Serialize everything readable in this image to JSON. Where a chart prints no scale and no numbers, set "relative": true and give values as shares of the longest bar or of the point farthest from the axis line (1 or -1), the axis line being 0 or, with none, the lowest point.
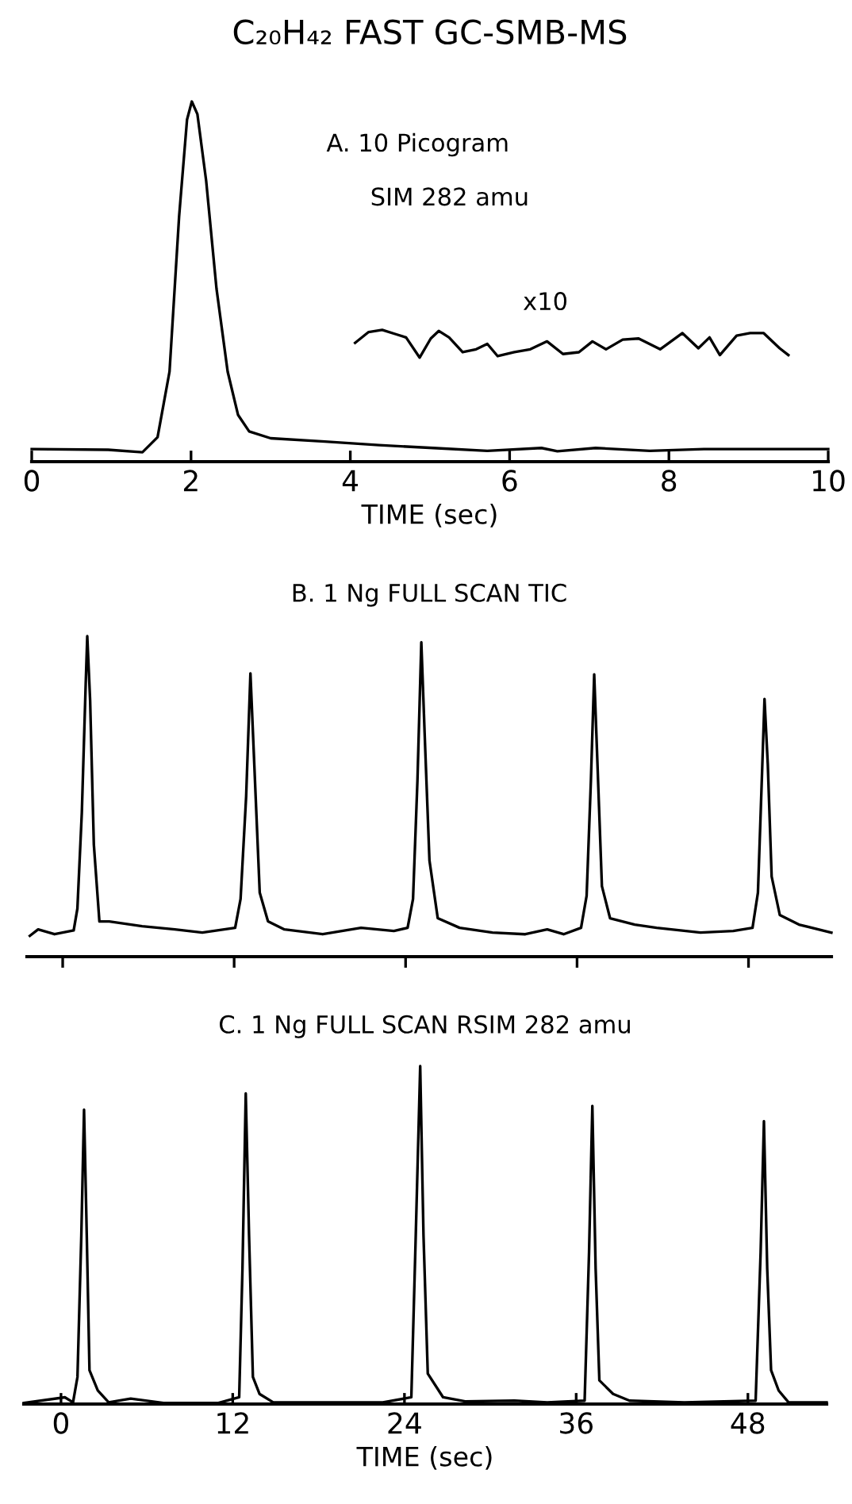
{
  "chart_data": [
    {
      "type": "line",
      "title": "C₂₀H₄₂ FAST GC-SMB-MS",
      "xlabel": "TIME (sec)",
      "relative": true,
      "xlim": [
        0,
        10
      ],
      "xticks": [
        0,
        2,
        4,
        6,
        8,
        10
      ],
      "annotations": [
        "A. 10 Picogram",
        "SIM 282 amu",
        "x10"
      ],
      "series": [
        {
          "color": "#000000",
          "x": [
            0,
            0.96,
            1.39,
            1.58,
            1.73,
            1.85,
            1.95,
            2.01,
            2.08,
            2.19,
            2.32,
            2.46,
            2.59,
            2.73,
            3.0,
            3.68,
            4.36,
            5.04,
            5.72,
            6.4,
            6.6,
            7.08,
            7.76,
            8.44,
            9.12,
            10
          ],
          "values": [
            0.035,
            0.033,
            0.026,
            0.068,
            0.25,
            0.68,
            0.95,
            1.0,
            0.965,
            0.78,
            0.48,
            0.25,
            0.13,
            0.084,
            0.065,
            0.056,
            0.046,
            0.038,
            0.03,
            0.038,
            0.029,
            0.038,
            0.03,
            0.035,
            0.035,
            0.035
          ]
        },
        {
          "color": "#000000",
          "x": [
            4.06,
            4.23,
            4.4,
            4.57,
            4.7,
            4.87,
            5.01,
            5.11,
            5.24,
            5.41,
            5.58,
            5.72,
            5.85,
            6.06,
            6.26,
            6.47,
            6.67,
            6.87,
            7.04,
            7.21,
            7.42,
            7.62,
            7.89,
            8.17,
            8.37,
            8.51,
            8.64,
            8.85,
            9.02,
            9.19,
            9.39,
            9.5
          ],
          "values": [
            0.33,
            0.36,
            0.366,
            0.354,
            0.345,
            0.289,
            0.342,
            0.363,
            0.345,
            0.304,
            0.312,
            0.327,
            0.293,
            0.304,
            0.312,
            0.334,
            0.299,
            0.304,
            0.334,
            0.312,
            0.339,
            0.342,
            0.312,
            0.357,
            0.315,
            0.345,
            0.296,
            0.35,
            0.357,
            0.357,
            0.315,
            0.296
          ]
        }
      ]
    },
    {
      "type": "line",
      "title": "B. 1 Ng FULL SCAN TIC",
      "relative": true,
      "xlim": [
        -2.5,
        53.8
      ],
      "xticks": [
        0,
        12,
        24,
        36,
        48
      ],
      "tick_labels": false,
      "series": [
        {
          "color": "#000000",
          "x": [
            -2.3,
            -1.72,
            -0.57,
            0.77,
            1.03,
            1.34,
            1.61,
            1.72,
            1.92,
            2.18,
            2.57,
            3.26,
            5.56,
            7.85,
            9.77,
            12.07,
            12.45,
            12.84,
            13.14,
            13.41,
            13.79,
            14.37,
            15.52,
            18.2,
            20.88,
            23.18,
            24.14,
            24.52,
            24.83,
            25.1,
            25.33,
            25.67,
            26.25,
            27.78,
            30.08,
            32.38,
            33.91,
            35.06,
            36.28,
            36.67,
            36.97,
            37.2,
            37.43,
            37.74,
            38.31,
            40.04,
            41.57,
            44.64,
            46.93,
            48.28,
            48.66,
            48.93,
            49.12,
            49.35,
            49.62,
            50.19,
            51.53,
            53.8
          ],
          "values": [
            0.065,
            0.085,
            0.07,
            0.082,
            0.15,
            0.45,
            0.85,
            1.0,
            0.8,
            0.35,
            0.11,
            0.11,
            0.095,
            0.085,
            0.075,
            0.09,
            0.18,
            0.5,
            0.884,
            0.6,
            0.2,
            0.11,
            0.085,
            0.07,
            0.09,
            0.08,
            0.09,
            0.18,
            0.55,
            0.981,
            0.7,
            0.3,
            0.12,
            0.09,
            0.075,
            0.07,
            0.085,
            0.07,
            0.09,
            0.19,
            0.55,
            0.881,
            0.6,
            0.22,
            0.12,
            0.1,
            0.09,
            0.075,
            0.08,
            0.09,
            0.2,
            0.55,
            0.804,
            0.6,
            0.25,
            0.13,
            0.1,
            0.075
          ]
        }
      ]
    },
    {
      "type": "line",
      "title": "C. 1 Ng FULL SCAN RSIM 282 amu",
      "xlabel": "TIME (sec)",
      "relative": true,
      "xlim": [
        -2.6,
        53.5
      ],
      "xticks": [
        0,
        12,
        24,
        36,
        48
      ],
      "series": [
        {
          "color": "#000000",
          "x": [
            -2.6,
            0.27,
            0.84,
            1.15,
            1.42,
            1.61,
            1.8,
            1.99,
            2.57,
            3.33,
            4.87,
            7.16,
            11.0,
            12.45,
            12.68,
            12.91,
            13.14,
            13.41,
            13.87,
            14.83,
            18.66,
            22.49,
            24.48,
            24.79,
            25.1,
            25.33,
            25.63,
            26.7,
            28.24,
            31.69,
            33.98,
            36.59,
            36.9,
            37.13,
            37.36,
            37.62,
            38.58,
            39.73,
            43.56,
            48.54,
            48.89,
            49.12,
            49.35,
            49.62,
            50.15,
            50.84,
            53.5
          ],
          "values": [
            0.003,
            0.02,
            0.005,
            0.08,
            0.5,
            0.871,
            0.5,
            0.1,
            0.04,
            0.005,
            0.016,
            0.003,
            0.003,
            0.02,
            0.4,
            0.919,
            0.5,
            0.08,
            0.03,
            0.005,
            0.005,
            0.005,
            0.02,
            0.5,
            1.0,
            0.5,
            0.09,
            0.02,
            0.008,
            0.01,
            0.005,
            0.01,
            0.45,
            0.882,
            0.4,
            0.07,
            0.03,
            0.01,
            0.005,
            0.01,
            0.45,
            0.837,
            0.4,
            0.1,
            0.04,
            0.005,
            0.005
          ]
        }
      ]
    }
  ]
}
